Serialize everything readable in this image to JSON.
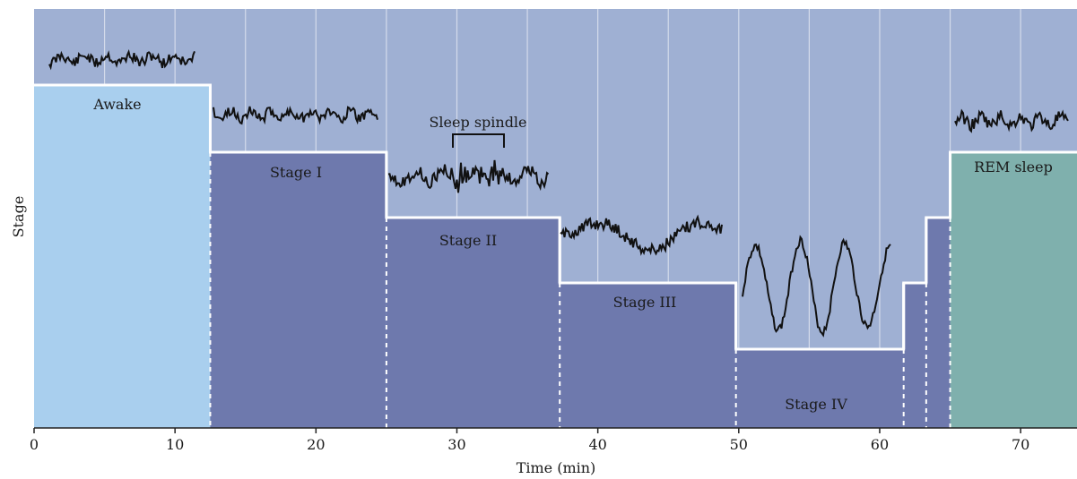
{
  "chart_data": {
    "type": "area",
    "xlabel": "Time (min)",
    "ylabel": "Stage",
    "xlim": [
      0,
      74
    ],
    "x_ticks": [
      0,
      10,
      20,
      30,
      40,
      50,
      60,
      70
    ],
    "grid": true,
    "stage_levels": {
      "Awake": 5,
      "REM sleep": 4,
      "Stage I": 4,
      "Stage II": 3,
      "Stage III": 2,
      "Stage IV": 1
    },
    "segments": [
      {
        "label": "Awake",
        "start": 0,
        "end": 12.5,
        "level": 5,
        "color": "#a9cfee"
      },
      {
        "label": "Stage I",
        "start": 12.5,
        "end": 25,
        "level": 4,
        "color": "#6e79ad"
      },
      {
        "label": "Stage II",
        "start": 25,
        "end": 37.3,
        "level": 3,
        "color": "#6e79ad"
      },
      {
        "label": "Stage III",
        "start": 37.3,
        "end": 49.8,
        "level": 2,
        "color": "#6e79ad"
      },
      {
        "label": "Stage IV",
        "start": 49.8,
        "end": 61.7,
        "level": 1,
        "color": "#6e79ad"
      },
      {
        "label": "",
        "start": 61.7,
        "end": 63.3,
        "level": 2,
        "color": "#6e79ad"
      },
      {
        "label": "",
        "start": 63.3,
        "end": 65,
        "level": 3,
        "color": "#6e79ad"
      },
      {
        "label": "REM sleep",
        "start": 65,
        "end": 74,
        "level": 4,
        "color": "#7fb0ad"
      }
    ],
    "annotations": [
      {
        "text": "Sleep spindle"
      }
    ],
    "colors": {
      "background": "#9fb0d3",
      "outline": "#ffffff",
      "trace": "#111111"
    }
  }
}
